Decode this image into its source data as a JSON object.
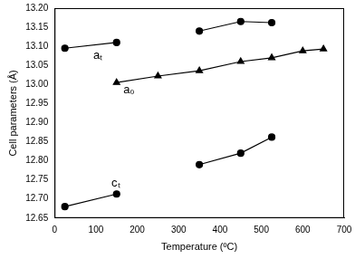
{
  "chart_data": {
    "type": "line",
    "x_label": "Temperature (ºC)",
    "y_label": "Cell parameters (Å)",
    "x": [
      25,
      150,
      250,
      350,
      450,
      525,
      600,
      650
    ],
    "series": [
      {
        "color": "#000000",
        "marker": "circle",
        "line_style": "solid",
        "values": [
          13.095,
          13.11,
          null,
          13.14,
          13.165,
          13.162,
          null,
          null
        ]
      },
      {
        "color": "#000000",
        "marker": "triangle",
        "line_style": "solid",
        "values": [
          null,
          13.005,
          13.022,
          13.036,
          13.06,
          13.07,
          13.088,
          13.093
        ]
      },
      {
        "color": "#000000",
        "marker": "circle",
        "line_style": "solid",
        "values": [
          12.68,
          12.713,
          null,
          12.79,
          12.82,
          12.862,
          null,
          null
        ]
      }
    ],
    "annotations": [
      {
        "text": "aₜ",
        "x": 105,
        "y": 13.075
      },
      {
        "text": "a₀",
        "x": 180,
        "y": 12.985
      },
      {
        "text": "cₜ",
        "x": 148,
        "y": 12.74
      }
    ],
    "xlim": [
      0,
      700
    ],
    "xticks": [
      0,
      100,
      200,
      300,
      400,
      500,
      600,
      700
    ],
    "ylim": [
      12.65,
      13.2
    ],
    "yticks": [
      12.65,
      {
        "value": 12.7,
        "label": "12.70"
      },
      12.75,
      {
        "value": 12.8,
        "label": "12.80"
      },
      12.85,
      {
        "value": 12.9,
        "label": "12.90"
      },
      12.95,
      {
        "value": 13.0,
        "label": "13.00"
      },
      13.05,
      {
        "value": 13.1,
        "label": "13.10"
      },
      13.15,
      {
        "value": 13.2,
        "label": "13.20"
      }
    ],
    "grid": false
  }
}
